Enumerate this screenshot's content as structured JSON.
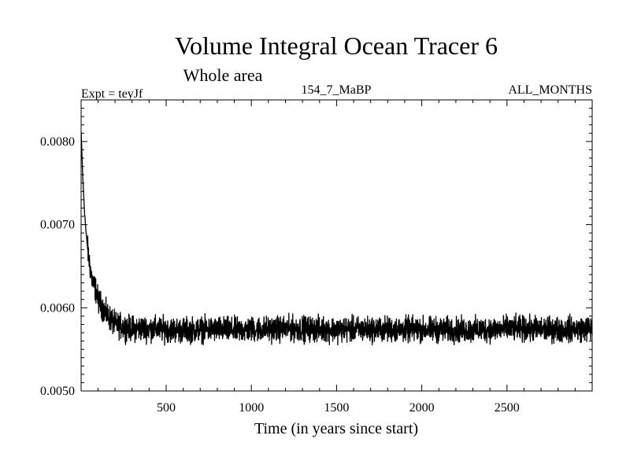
{
  "chart_data": {
    "type": "line",
    "title": "Volume Integral Ocean Tracer 6",
    "subtitle": "Whole area",
    "experiment_label": "Expt = teyJf",
    "run_label": "154_7_MaBP",
    "period_label": "ALL_MONTHS",
    "xlabel": "Time (in years since start)",
    "ylabel": "",
    "xlim": [
      1,
      3000
    ],
    "ylim": [
      0.005,
      0.0085
    ],
    "x_ticks": [
      {
        "value": 500,
        "label": "500"
      },
      {
        "value": 1000,
        "label": "1000"
      },
      {
        "value": 1500,
        "label": "1500"
      },
      {
        "value": 2000,
        "label": "2000"
      },
      {
        "value": 2500,
        "label": "2500"
      }
    ],
    "y_ticks": [
      {
        "value": 0.005,
        "label": "0.0050"
      },
      {
        "value": 0.006,
        "label": "0.0060"
      },
      {
        "value": 0.007,
        "label": "0.0070"
      },
      {
        "value": 0.008,
        "label": "0.0080"
      }
    ],
    "series": [
      {
        "name": "Ocean Tracer 6 volume integral",
        "color": "#000000",
        "x": [
          1,
          5,
          10,
          20,
          30,
          40,
          50,
          60,
          70,
          80,
          90,
          100,
          120,
          140,
          160,
          180,
          200,
          250,
          300,
          400,
          500,
          600,
          700,
          800,
          900,
          1000,
          1250,
          1500,
          1750,
          2000,
          2250,
          2500,
          2750,
          3000
        ],
        "y": [
          0.0081,
          0.0079,
          0.0076,
          0.0072,
          0.0069,
          0.0067,
          0.00655,
          0.0064,
          0.0063,
          0.00625,
          0.0062,
          0.0061,
          0.00603,
          0.00595,
          0.0059,
          0.00585,
          0.0058,
          0.00577,
          0.00575,
          0.00575,
          0.00574,
          0.00573,
          0.00574,
          0.00574,
          0.00573,
          0.00574,
          0.00575,
          0.00574,
          0.00574,
          0.00574,
          0.00573,
          0.00575,
          0.00574,
          0.00575
        ],
        "noise_amplitude": 0.00022
      }
    ]
  }
}
